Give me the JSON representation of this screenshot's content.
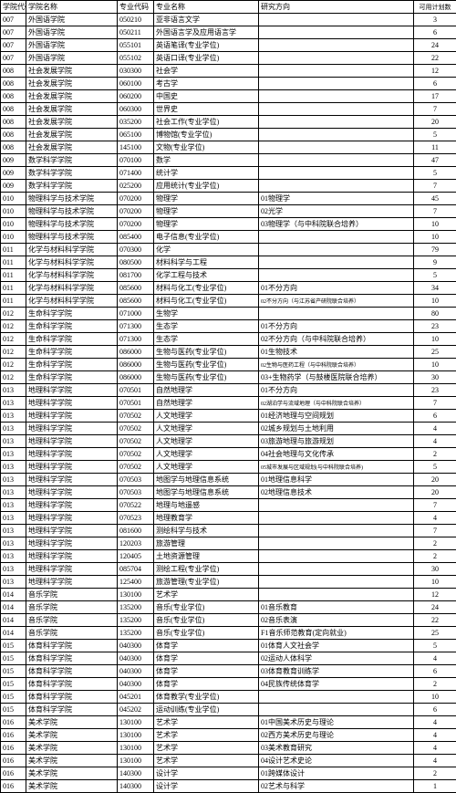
{
  "headers": [
    "学院代码",
    "学院名称",
    "专业代码",
    "专业名称",
    "研究方向",
    "可用计划数"
  ],
  "rows": [
    [
      "007",
      "外国语学院",
      "050210",
      "亚非语言文学",
      "",
      "3"
    ],
    [
      "007",
      "外国语学院",
      "050211",
      "外国语言学及应用语言学",
      "",
      "6"
    ],
    [
      "007",
      "外国语学院",
      "055101",
      "英语笔译(专业学位)",
      "",
      "24"
    ],
    [
      "007",
      "外国语学院",
      "055102",
      "英语口译(专业学位)",
      "",
      "22"
    ],
    [
      "008",
      "社会发展学院",
      "030300",
      "社会学",
      "",
      "12"
    ],
    [
      "008",
      "社会发展学院",
      "060100",
      "考古学",
      "",
      "6"
    ],
    [
      "008",
      "社会发展学院",
      "060200",
      "中国史",
      "",
      "17"
    ],
    [
      "008",
      "社会发展学院",
      "060300",
      "世界史",
      "",
      "7"
    ],
    [
      "008",
      "社会发展学院",
      "035200",
      "社会工作(专业学位)",
      "",
      "20"
    ],
    [
      "008",
      "社会发展学院",
      "065100",
      "博物馆(专业学位)",
      "",
      "5"
    ],
    [
      "008",
      "社会发展学院",
      "145100",
      "文物(专业学位)",
      "",
      "11"
    ],
    [
      "009",
      "数学科学学院",
      "070100",
      "数学",
      "",
      "47"
    ],
    [
      "009",
      "数学科学学院",
      "071400",
      "统计学",
      "",
      "5"
    ],
    [
      "009",
      "数学科学学院",
      "025200",
      "应用统计(专业学位)",
      "",
      "7"
    ],
    [
      "010",
      "物理科学与技术学院",
      "070200",
      "物理学",
      "01物理学",
      "45"
    ],
    [
      "010",
      "物理科学与技术学院",
      "070200",
      "物理学",
      "02光学",
      "7"
    ],
    [
      "010",
      "物理科学与技术学院",
      "070200",
      "物理学",
      "03物理学（与中科院联合培养）",
      "10"
    ],
    [
      "010",
      "物理科学与技术学院",
      "085400",
      "电子信息(专业学位)",
      "",
      "10"
    ],
    [
      "011",
      "化学与材料科学学院",
      "070300",
      "化学",
      "",
      "79"
    ],
    [
      "011",
      "化学与材料科学学院",
      "080500",
      "材料科学与工程",
      "",
      "9"
    ],
    [
      "011",
      "化学与材料科学学院",
      "081700",
      "化学工程与技术",
      "",
      "5"
    ],
    [
      "011",
      "化学与材料科学学院",
      "085600",
      "材料与化工(专业学位)",
      "01不分方向",
      "34"
    ],
    [
      "011",
      "化学与材料科学学院",
      "085600",
      "材料与化工(专业学位)",
      "<span class='small'>02不分方向（与江苏省产研院联合培养）</span>",
      "10"
    ],
    [
      "012",
      "生命科学学院",
      "071000",
      "生物学",
      "",
      "80"
    ],
    [
      "012",
      "生命科学学院",
      "071300",
      "生态学",
      "01不分方向",
      "23"
    ],
    [
      "012",
      "生命科学学院",
      "071300",
      "生态学",
      "02不分方向（与中科院联合培养）",
      "10"
    ],
    [
      "012",
      "生命科学学院",
      "086000",
      "生物与医药(专业学位)",
      "01生物技术",
      "25"
    ],
    [
      "012",
      "生命科学学院",
      "086000",
      "生物与医药(专业学位)",
      "<span class='small'>02生物与医药工程（与中科院联合培养）</span>",
      "10"
    ],
    [
      "012",
      "生命科学学院",
      "086000",
      "生物与医药(专业学位)",
      "03+生物药学（与鼓楼医院联合培养）",
      "30"
    ],
    [
      "013",
      "地理科学学院",
      "070501",
      "自然地理学",
      "01不分方向",
      "23"
    ],
    [
      "013",
      "地理科学学院",
      "070501",
      "自然地理学",
      "<span class='small'>02湖泊学与流域地理（与中科院联合培养）</span>",
      "7"
    ],
    [
      "013",
      "地理科学学院",
      "070502",
      "人文地理学",
      "01经济地理与空间规划",
      "6"
    ],
    [
      "013",
      "地理科学学院",
      "070502",
      "人文地理学",
      "02城乡规划与土地利用",
      "4"
    ],
    [
      "013",
      "地理科学学院",
      "070502",
      "人文地理学",
      "03旅游地理与旅游规划",
      "4"
    ],
    [
      "013",
      "地理科学学院",
      "070502",
      "人文地理学",
      "04社会地理与文化传承",
      "2"
    ],
    [
      "013",
      "地理科学学院",
      "070502",
      "人文地理学",
      "<span class='small'>05城市发展与区域规划(与中科院联合培养)</span>",
      "5"
    ],
    [
      "013",
      "地理科学学院",
      "070503",
      "地图学与地理信息系统",
      "01地理信息科学",
      "20"
    ],
    [
      "013",
      "地理科学学院",
      "070503",
      "地图学与地理信息系统",
      "02地理信息技术",
      "20"
    ],
    [
      "013",
      "地理科学学院",
      "070522",
      "地理与地遥感",
      "",
      "7"
    ],
    [
      "013",
      "地理科学学院",
      "070523",
      "地理教育学",
      "",
      "4"
    ],
    [
      "013",
      "地理科学学院",
      "081600",
      "测绘科学与技术",
      "",
      "7"
    ],
    [
      "013",
      "地理科学学院",
      "120203",
      "旅游管理",
      "",
      "2"
    ],
    [
      "013",
      "地理科学学院",
      "120405",
      "土地资源管理",
      "",
      "2"
    ],
    [
      "013",
      "地理科学学院",
      "085704",
      "测绘工程(专业学位)",
      "",
      "30"
    ],
    [
      "013",
      "地理科学学院",
      "125400",
      "旅游管理(专业学位)",
      "",
      "10"
    ],
    [
      "014",
      "音乐学院",
      "130100",
      "艺术学",
      "",
      "12"
    ],
    [
      "014",
      "音乐学院",
      "135200",
      "音乐(专业学位)",
      "01音乐教育",
      "24"
    ],
    [
      "014",
      "音乐学院",
      "135200",
      "音乐(专业学位)",
      "02音乐表演",
      "22"
    ],
    [
      "014",
      "音乐学院",
      "135200",
      "音乐(专业学位)",
      "F1音乐师范教育(定向就业)",
      "25"
    ],
    [
      "015",
      "体育科学学院",
      "040300",
      "体育学",
      "01体育人文社会学",
      "5"
    ],
    [
      "015",
      "体育科学学院",
      "040300",
      "体育学",
      "02运动人体科学",
      "4"
    ],
    [
      "015",
      "体育科学学院",
      "040300",
      "体育学",
      "03体育教育训练学",
      "6"
    ],
    [
      "015",
      "体育科学学院",
      "040300",
      "体育学",
      "04民族传统体育学",
      "2"
    ],
    [
      "015",
      "体育科学学院",
      "045201",
      "体育教学(专业学位)",
      "",
      "10"
    ],
    [
      "015",
      "体育科学学院",
      "045202",
      "运动训练(专业学位)",
      "",
      "6"
    ],
    [
      "016",
      "美术学院",
      "130100",
      "艺术学",
      "01中国美术历史与理论",
      "4"
    ],
    [
      "016",
      "美术学院",
      "130100",
      "艺术学",
      "02西方美术历史与理论",
      "4"
    ],
    [
      "016",
      "美术学院",
      "130100",
      "艺术学",
      "03美术教育研究",
      "4"
    ],
    [
      "016",
      "美术学院",
      "130100",
      "艺术学",
      "04设计艺术史论",
      "4"
    ],
    [
      "016",
      "美术学院",
      "140300",
      "设计学",
      "01跨媒体设计",
      "2"
    ],
    [
      "016",
      "美术学院",
      "140300",
      "设计学",
      "02艺术与科学",
      "1"
    ]
  ]
}
